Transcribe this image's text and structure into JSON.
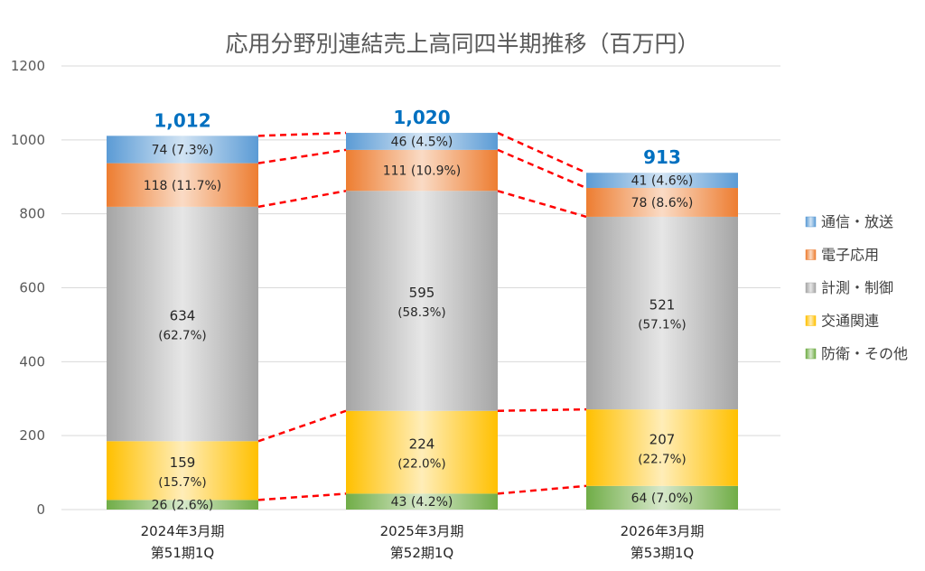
{
  "chart_data": {
    "type": "bar",
    "stacked": true,
    "title": "応用分野別連結売上高同四半期推移（百万円）",
    "categories": [
      [
        "2024年3月期",
        "第51期1Q"
      ],
      [
        "2025年3月期",
        "第52期1Q"
      ],
      [
        "2026年3月期",
        "第53期1Q"
      ]
    ],
    "totals": [
      1012,
      1020,
      913
    ],
    "total_labels": [
      "1,012",
      "1,020",
      "913"
    ],
    "ylim": [
      0,
      1200
    ],
    "yticks": [
      0,
      200,
      400,
      600,
      800,
      1000,
      1200
    ],
    "grid": true,
    "legend_position": "right",
    "connector_lines": true,
    "series": [
      {
        "name": "防衛・その他",
        "color": "#70ad47",
        "values": [
          26,
          43,
          64
        ],
        "percents": [
          "2.6%",
          "4.2%",
          "7.0%"
        ]
      },
      {
        "name": "交通関連",
        "color": "#ffc000",
        "values": [
          159,
          224,
          207
        ],
        "percents": [
          "15.7%",
          "22.0%",
          "22.7%"
        ]
      },
      {
        "name": "計測・制御",
        "color": "#a5a5a5",
        "values": [
          634,
          595,
          521
        ],
        "percents": [
          "62.7%",
          "58.3%",
          "57.1%"
        ]
      },
      {
        "name": "電子応用",
        "color": "#ed7d31",
        "values": [
          118,
          111,
          78
        ],
        "percents": [
          "11.7%",
          "10.9%",
          "8.6%"
        ]
      },
      {
        "name": "通信・放送",
        "color": "#5b9bd5",
        "values": [
          74,
          46,
          41
        ],
        "percents": [
          "7.3%",
          "4.5%",
          "4.6%"
        ]
      }
    ],
    "legend_order": [
      "通信・放送",
      "電子応用",
      "計測・制御",
      "交通関連",
      "防衛・その他"
    ]
  }
}
